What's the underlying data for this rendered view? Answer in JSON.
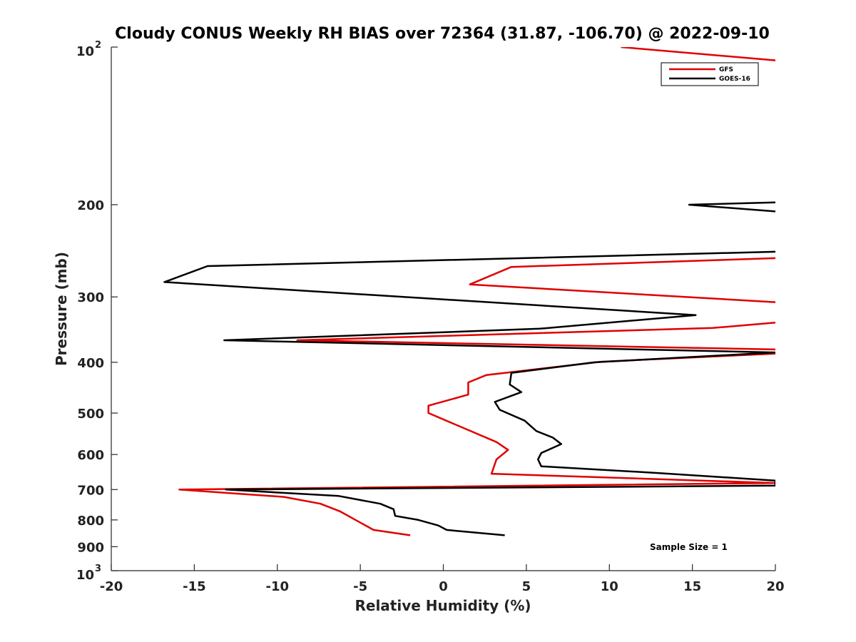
{
  "chart_data": {
    "type": "line",
    "title": "Cloudy CONUS Weekly RH BIAS over 72364 (31.87, -106.70) @ 2022-09-10",
    "xlabel": "Relative Humidity (%)",
    "ylabel": "Pressure (mb)",
    "xlim": [
      -20,
      20
    ],
    "ylim": [
      100,
      1000
    ],
    "y_scale": "log",
    "y_reversed": true,
    "grid": false,
    "legend_position": "top-right",
    "x_ticks": [
      "-20",
      "-15",
      "-10",
      "-5",
      "0",
      "5",
      "10",
      "15",
      "20"
    ],
    "y_ticks": [
      {
        "value": 100,
        "base": "10",
        "exp": "2"
      },
      {
        "value": 200,
        "label": "200"
      },
      {
        "value": 300,
        "label": "300"
      },
      {
        "value": 400,
        "label": "400"
      },
      {
        "value": 500,
        "label": "500"
      },
      {
        "value": 600,
        "label": "600"
      },
      {
        "value": 700,
        "label": "700"
      },
      {
        "value": 800,
        "label": "800"
      },
      {
        "value": 900,
        "label": "900"
      },
      {
        "value": 1000,
        "base": "10",
        "exp": "3"
      }
    ],
    "annotation": "Sample Size = 1",
    "series": [
      {
        "name": "GFS",
        "color": "#e00000",
        "points": [
          [
            10.7,
            100
          ],
          [
            20.0,
            106
          ],
          [
            null,
            null
          ],
          [
            20.0,
            253
          ],
          [
            4.1,
            263
          ],
          [
            1.6,
            284
          ],
          [
            20.0,
            307
          ],
          [
            null,
            null
          ],
          [
            20.0,
            336
          ],
          [
            16.2,
            344
          ],
          [
            -8.8,
            363
          ],
          [
            20.0,
            378
          ],
          [
            null,
            null
          ],
          [
            20.0,
            385
          ],
          [
            9.5,
            399
          ],
          [
            2.6,
            423
          ],
          [
            1.5,
            437
          ],
          [
            1.5,
            461
          ],
          [
            -0.9,
            484
          ],
          [
            -0.9,
            500
          ],
          [
            3.2,
            568
          ],
          [
            3.9,
            588
          ],
          [
            3.2,
            613
          ],
          [
            2.9,
            653
          ],
          [
            20.0,
            680
          ],
          [
            null,
            null
          ],
          [
            20.0,
            680
          ],
          [
            -15.9,
            700
          ],
          [
            -9.6,
            723
          ],
          [
            -7.4,
            745
          ],
          [
            -6.2,
            771
          ],
          [
            -4.2,
            836
          ],
          [
            -2.0,
            856
          ]
        ]
      },
      {
        "name": "GOES-16",
        "color": "#000000",
        "points": [
          [
            20.0,
            198
          ],
          [
            14.8,
            200
          ],
          [
            20.0,
            206
          ],
          [
            null,
            null
          ],
          [
            20.0,
            246
          ],
          [
            -14.2,
            262
          ],
          [
            -16.8,
            281
          ],
          [
            15.2,
            325
          ],
          [
            5.8,
            345
          ],
          [
            -13.2,
            363
          ],
          [
            20.0,
            383
          ],
          [
            9.1,
            400
          ],
          [
            4.1,
            419
          ],
          [
            4.0,
            441
          ],
          [
            4.7,
            456
          ],
          [
            3.1,
            476
          ],
          [
            3.4,
            493
          ],
          [
            4.9,
            517
          ],
          [
            5.6,
            541
          ],
          [
            6.6,
            557
          ],
          [
            7.1,
            573
          ],
          [
            5.9,
            596
          ],
          [
            5.7,
            613
          ],
          [
            5.9,
            632
          ],
          [
            13.0,
            651
          ],
          [
            20.0,
            673
          ],
          [
            20.0,
            688
          ],
          [
            -13.1,
            700
          ],
          [
            -6.3,
            720
          ],
          [
            -3.8,
            745
          ],
          [
            -3.0,
            763
          ],
          [
            -2.9,
            786
          ],
          [
            -1.5,
            800
          ],
          [
            -0.3,
            820
          ],
          [
            0.2,
            836
          ],
          [
            3.7,
            856
          ]
        ]
      }
    ]
  }
}
